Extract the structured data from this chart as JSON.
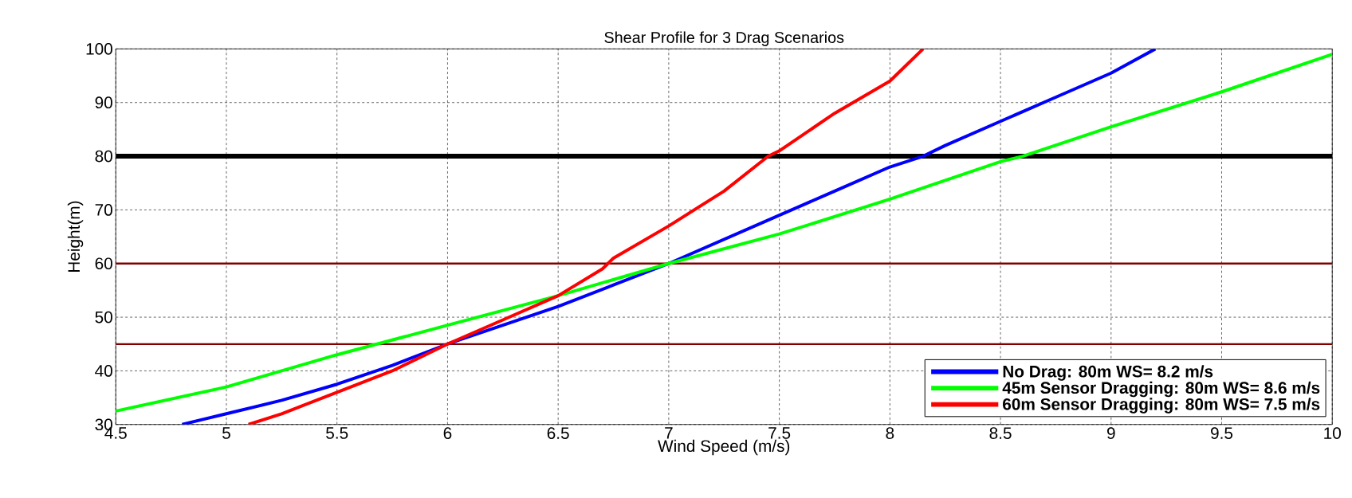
{
  "chart_data": {
    "type": "line",
    "title": "Shear Profile for 3 Drag Scenarios",
    "xlabel": "Wind Speed (m/s)",
    "ylabel": "Height(m)",
    "xlim": [
      4.5,
      10
    ],
    "ylim": [
      30,
      100
    ],
    "xticks": [
      4.5,
      5,
      5.5,
      6,
      6.5,
      7,
      7.5,
      8,
      8.5,
      9,
      9.5,
      10
    ],
    "yticks": [
      30,
      40,
      50,
      60,
      70,
      80,
      90,
      100
    ],
    "grid": true,
    "legend": "bottom right",
    "line_style": "solid",
    "marker": "none",
    "series": [
      {
        "name": "No Drag:                           80m WS= 8.2 m/s",
        "color": "#0000ff",
        "x": [
          4.8,
          5.0,
          5.25,
          5.5,
          5.75,
          6.0,
          6.25,
          6.5,
          6.75,
          7.0,
          7.25,
          7.5,
          7.75,
          8.0,
          8.15,
          8.25,
          8.5,
          8.75,
          9.0,
          9.2
        ],
        "values": [
          30,
          32,
          34.5,
          37.5,
          41,
          45,
          48.5,
          52,
          56,
          60,
          64.5,
          69,
          73.5,
          78,
          80,
          82,
          86.5,
          91,
          95.5,
          100
        ]
      },
      {
        "name": "45m Sensor Dragging: 80m WS= 8.6 m/s",
        "color": "#00ff00",
        "x": [
          4.5,
          5.0,
          5.5,
          6.0,
          6.5,
          7.0,
          7.5,
          8.0,
          8.5,
          8.6,
          9.0,
          9.5,
          10.0
        ],
        "values": [
          32.5,
          37,
          43,
          48.5,
          54,
          60,
          65.5,
          72,
          79,
          80,
          85.5,
          92,
          99
        ]
      },
      {
        "name": "60m Sensor Dragging: 80m WS= 7.5 m/s",
        "color": "#ff0000",
        "x": [
          5.1,
          5.25,
          5.5,
          5.75,
          6.0,
          6.25,
          6.5,
          6.7,
          6.75,
          7.0,
          7.25,
          7.45,
          7.5,
          7.75,
          8.0,
          8.15
        ],
        "values": [
          30,
          32,
          36,
          40,
          45,
          49.5,
          54,
          59,
          61,
          67,
          73.5,
          80,
          81,
          88,
          94,
          100
        ]
      }
    ],
    "ref_lines": [
      {
        "axis": "y",
        "value": 80,
        "color": "#000000"
      },
      {
        "axis": "y",
        "value": 60,
        "color": "#800000"
      },
      {
        "axis": "y",
        "value": 45,
        "color": "#800000"
      }
    ]
  }
}
